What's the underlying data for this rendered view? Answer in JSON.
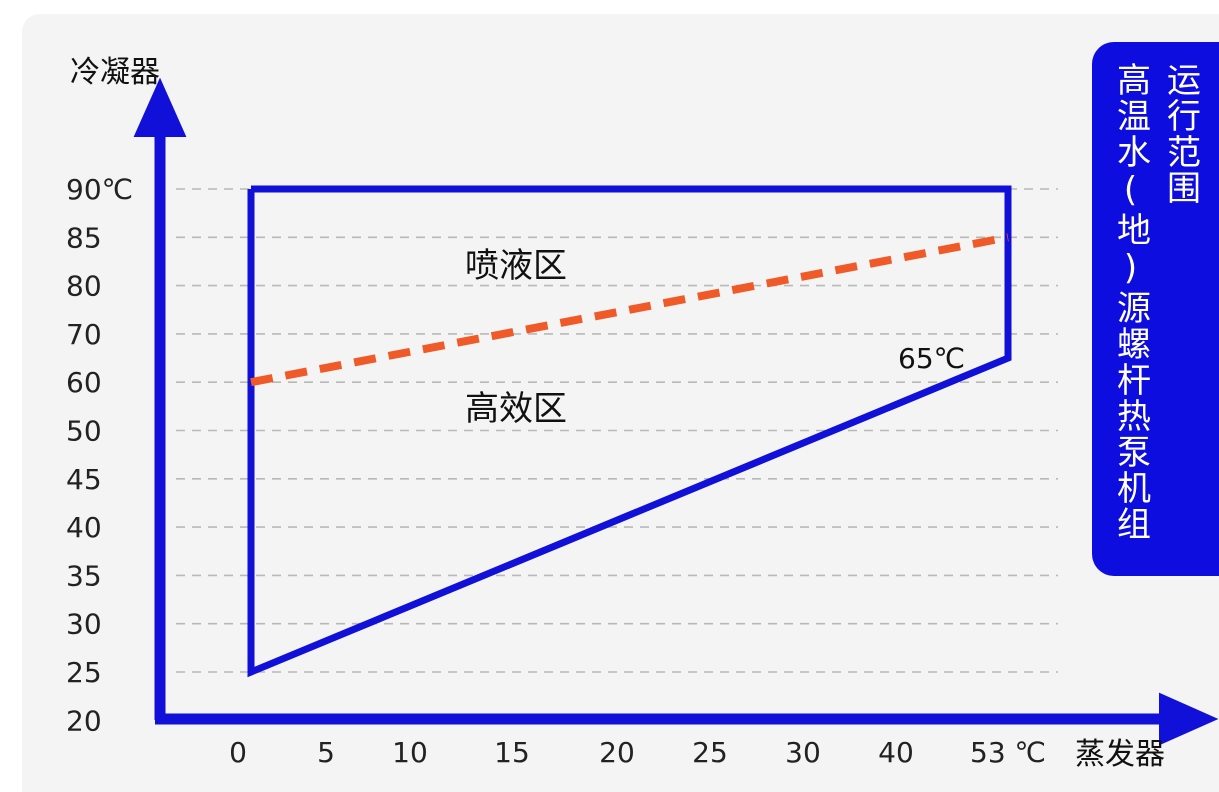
{
  "colors": {
    "axis": "#1010d8",
    "boundary": "#1010d8",
    "divider": "#f05a28",
    "grid": "#b8b8b8",
    "panel": "#0d0de0"
  },
  "side_panel": {
    "line1": "运行范围",
    "line2": "高温水(地)源螺杆热泵机组"
  },
  "chart_data": {
    "type": "line",
    "xlabel": "蒸发器",
    "ylabel": "冷凝器",
    "x_ticks": [
      "0",
      "5",
      "10",
      "15",
      "20",
      "25",
      "30",
      "40",
      "53 ℃"
    ],
    "y_ticks": [
      "20",
      "25",
      "30",
      "35",
      "40",
      "45",
      "50",
      "60",
      "70",
      "80",
      "85",
      "90℃"
    ],
    "grid": "horizontal-dashed",
    "series": [
      {
        "role": "operating-boundary",
        "points": [
          [
            0,
            90
          ],
          [
            53,
            90
          ],
          [
            53,
            65
          ],
          [
            0,
            25
          ]
        ]
      },
      {
        "role": "divider-dashed",
        "points": [
          [
            0,
            60
          ],
          [
            53,
            85
          ]
        ]
      }
    ],
    "annotations": [
      {
        "text": "喷液区"
      },
      {
        "text": "高效区"
      },
      {
        "text": "65℃"
      }
    ]
  }
}
